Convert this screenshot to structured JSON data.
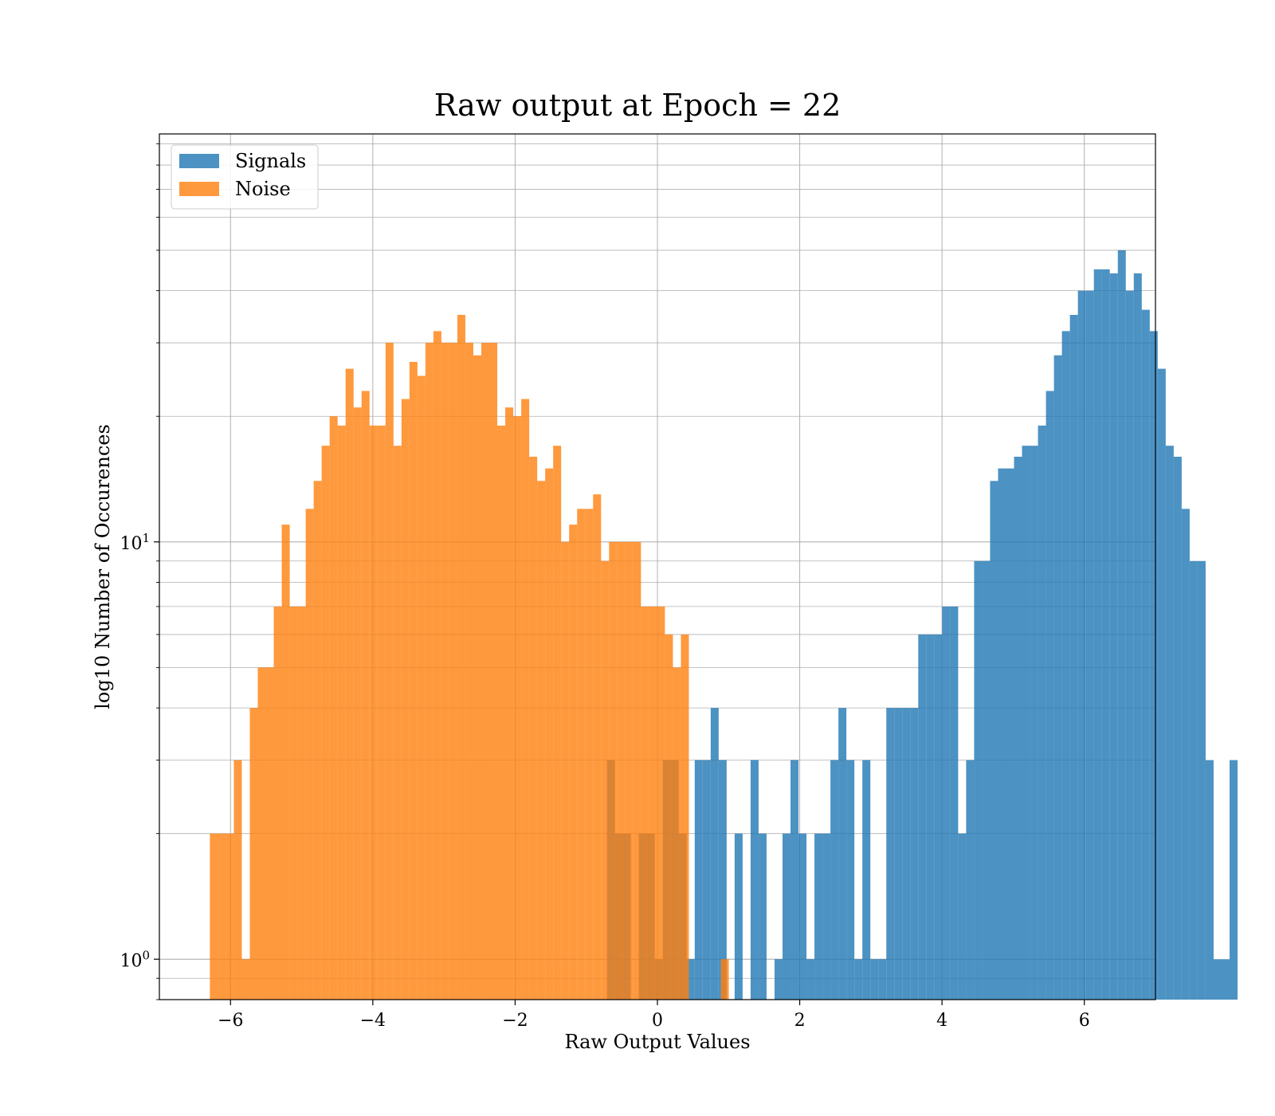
{
  "chart_data": {
    "type": "histogram",
    "title": "Raw output at Epoch = 22",
    "xlabel": "Raw Output Values",
    "ylabel": "log10 Number of Occurences",
    "xscale": "linear",
    "yscale": "log",
    "xlim": [
      -7.0,
      7.0
    ],
    "ylim": [
      0.8,
      95
    ],
    "grid": true,
    "legend_position": "top-left",
    "x_ticks": [
      {
        "value": -6,
        "label": "−6"
      },
      {
        "value": -4,
        "label": "−4"
      },
      {
        "value": -2,
        "label": "−2"
      },
      {
        "value": 0,
        "label": "0"
      },
      {
        "value": 2,
        "label": "2"
      },
      {
        "value": 4,
        "label": "4"
      },
      {
        "value": 6,
        "label": "6"
      }
    ],
    "y_ticks": [
      {
        "value": 1,
        "label_base": "10",
        "label_exp": "0"
      },
      {
        "value": 10,
        "label_base": "10",
        "label_exp": "1"
      }
    ],
    "series": [
      {
        "name": "Signals",
        "color": "#1f77b4",
        "opacity": 0.8,
        "bin_start": -0.71,
        "bin_width": 0.1122,
        "counts": [
          3,
          2,
          2,
          0,
          2,
          2,
          1,
          3,
          3,
          2,
          1,
          3,
          3,
          4,
          3,
          0,
          2,
          0,
          3,
          2,
          0,
          1,
          2,
          3,
          2,
          1,
          2,
          2,
          3,
          4,
          3,
          1,
          3,
          1,
          1,
          4,
          4,
          4,
          4,
          6,
          6,
          6,
          7,
          7,
          2,
          3,
          9,
          9,
          14,
          15,
          15,
          16,
          17,
          17,
          19,
          23,
          28,
          32,
          35,
          40,
          40,
          45,
          45,
          44,
          50,
          40,
          44,
          36,
          32,
          26,
          17,
          16,
          12,
          9,
          9,
          3,
          1,
          1,
          3
        ],
        "bars": []
      },
      {
        "name": "Noise",
        "color": "#ff7f0e",
        "opacity": 0.8,
        "bin_start": -6.29,
        "bin_width": 0.1122,
        "counts": [
          2,
          2,
          2,
          3,
          1,
          4,
          5,
          5,
          7,
          11,
          7,
          7,
          12,
          14,
          17,
          20,
          19,
          26,
          21,
          23,
          19,
          19,
          30,
          17,
          22,
          27,
          25,
          30,
          32,
          30,
          30,
          35,
          30,
          28,
          30,
          30,
          19,
          21,
          20,
          22,
          16,
          14,
          15,
          17,
          10,
          11,
          12,
          12,
          13,
          9,
          10,
          10,
          10,
          10,
          7,
          7,
          7,
          6,
          5,
          6,
          0,
          0,
          0,
          0,
          1,
          0,
          0,
          0
        ],
        "bars": []
      }
    ]
  }
}
